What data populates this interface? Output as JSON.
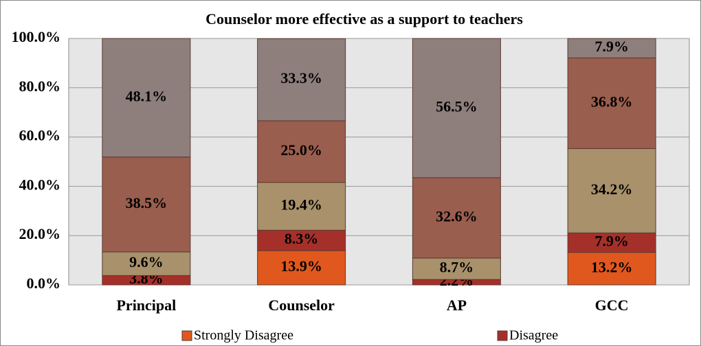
{
  "chart_data": {
    "type": "stacked-bar",
    "title": "Counselor more effective as a support to teachers",
    "categories": [
      "Principal",
      "Counselor",
      "AP",
      "GCC"
    ],
    "series": [
      {
        "name": "Strongly Disagree",
        "color": "#e0581e",
        "values": [
          null,
          13.9,
          null,
          13.2
        ],
        "value_labels": [
          null,
          "13.9%",
          null,
          "13.2%"
        ]
      },
      {
        "name": "Disagree",
        "color": "#a5302a",
        "values": [
          3.8,
          8.3,
          2.2,
          7.9
        ],
        "value_labels": [
          "3.8%",
          "8.3%",
          "2.2%",
          "7.9%"
        ]
      },
      {
        "color": "#a8916b",
        "values": [
          9.6,
          19.4,
          8.7,
          34.2
        ],
        "value_labels": [
          "9.6%",
          "19.4%",
          "8.7%",
          "34.2%"
        ]
      },
      {
        "color": "#9a5e4e",
        "values": [
          38.5,
          25.0,
          32.6,
          36.8
        ],
        "value_labels": [
          "38.5%",
          "25.0%",
          "32.6%",
          "36.8%"
        ]
      },
      {
        "color": "#8e7f7d",
        "values": [
          48.1,
          33.3,
          56.5,
          7.9
        ],
        "value_labels": [
          "48.1%",
          "33.3%",
          "56.5%",
          "7.9%"
        ]
      }
    ],
    "ylim": [
      0,
      100
    ],
    "yticks": [
      {
        "value": 0,
        "label": "0.0%"
      },
      {
        "value": 20,
        "label": "20.0%"
      },
      {
        "value": 40,
        "label": "40.0%"
      },
      {
        "value": 60,
        "label": "60.0%"
      },
      {
        "value": 80,
        "label": "80.0%"
      },
      {
        "value": 100,
        "label": "100.0%"
      }
    ],
    "grid": true,
    "legend": "bottom"
  }
}
